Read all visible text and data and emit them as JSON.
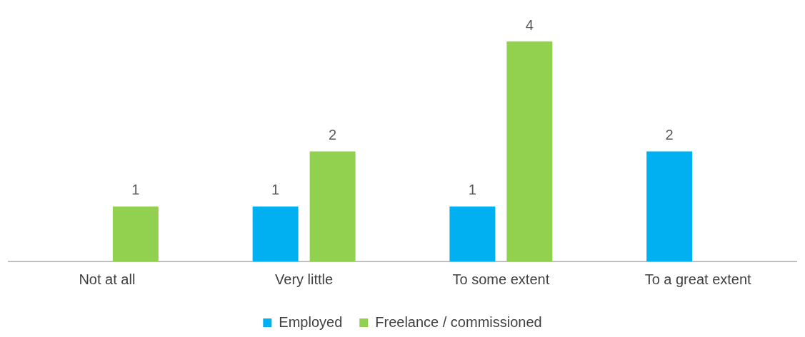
{
  "chart_data": {
    "type": "bar",
    "categories": [
      "Not at all",
      "Very little",
      "To some extent",
      "To a great extent"
    ],
    "series": [
      {
        "name": "Employed",
        "color": "#00b0f0",
        "values": [
          null,
          1,
          1,
          2
        ]
      },
      {
        "name": "Freelance / commissioned",
        "color": "#92d050",
        "values": [
          1,
          2,
          4,
          null
        ]
      }
    ],
    "data_labels": true,
    "legend": "bottom",
    "grid": false
  }
}
